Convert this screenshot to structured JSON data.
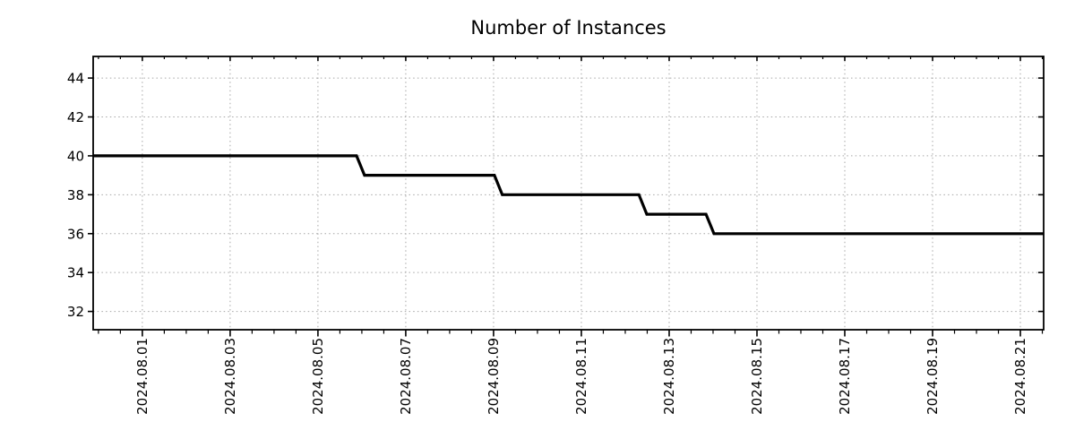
{
  "page": {
    "background": "#ffffff",
    "text_color": "#1a1a1a"
  },
  "chart_data": {
    "type": "line",
    "style": "step-line",
    "title": "Number of Instances",
    "colors": {
      "line": "#000000",
      "grid": "#a6a6a6",
      "axis": "#000000",
      "text": "#1a1a1a",
      "background": "#ffffff"
    },
    "x_axis": {
      "unit": "days since 2024-08-01 00:00",
      "lim": [
        -1.12,
        20.53
      ],
      "minor_tick_step": 0.5,
      "major_ticks": [
        {
          "t": 0,
          "label": "2024.08.01"
        },
        {
          "t": 2,
          "label": "2024.08.03"
        },
        {
          "t": 4,
          "label": "2024.08.05"
        },
        {
          "t": 6,
          "label": "2024.08.07"
        },
        {
          "t": 8,
          "label": "2024.08.09"
        },
        {
          "t": 10,
          "label": "2024.08.11"
        },
        {
          "t": 12,
          "label": "2024.08.13"
        },
        {
          "t": 14,
          "label": "2024.08.15"
        },
        {
          "t": 16,
          "label": "2024.08.17"
        },
        {
          "t": 18,
          "label": "2024.08.19"
        },
        {
          "t": 20,
          "label": "2024.08.21"
        }
      ]
    },
    "y_axis": {
      "lim": [
        31.06,
        45.11
      ],
      "major_ticks": [
        32,
        34,
        36,
        38,
        40,
        42,
        44
      ]
    },
    "grid": {
      "show": true,
      "style": "dotted"
    },
    "legend": {
      "show": false
    },
    "series": [
      {
        "name": "instances",
        "color": "#000000",
        "points": [
          [
            -1.12,
            40
          ],
          [
            4.88,
            40
          ],
          [
            5.06,
            39
          ],
          [
            8.02,
            39
          ],
          [
            8.2,
            38
          ],
          [
            11.31,
            38
          ],
          [
            11.49,
            37
          ],
          [
            12.84,
            37
          ],
          [
            13.02,
            36
          ],
          [
            20.53,
            36
          ]
        ]
      }
    ],
    "step_changes": [
      {
        "date": "2024.08.06",
        "from": 40,
        "to": 39
      },
      {
        "date": "2024.08.09",
        "from": 39,
        "to": 38
      },
      {
        "date": "2024.08.12",
        "from": 38,
        "to": 37
      },
      {
        "date": "2024.08.14",
        "from": 37,
        "to": 36
      }
    ]
  }
}
